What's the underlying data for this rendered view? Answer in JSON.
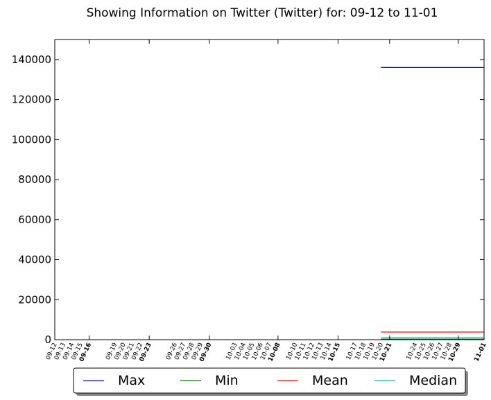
{
  "chart_data": {
    "type": "line",
    "title": "Showing Information on Twitter (Twitter) for: 09-12 to 11-01",
    "xlabel": "",
    "ylabel": "",
    "ylim": [
      0,
      150000
    ],
    "yticks": [
      0,
      20000,
      40000,
      60000,
      80000,
      100000,
      120000,
      140000
    ],
    "ytick_labels": [
      "0",
      "20000",
      "40000",
      "60000",
      "80000",
      "100000",
      "120000",
      "140000"
    ],
    "x_range": [
      "09-12",
      "11-01"
    ],
    "x_tick_labels": [
      {
        "label": "09-12",
        "major": false
      },
      {
        "label": "09-13",
        "major": false
      },
      {
        "label": "09-14",
        "major": false
      },
      {
        "label": "09-15",
        "major": false
      },
      {
        "label": "09-16",
        "major": true
      },
      {
        "label": "09-19",
        "major": false
      },
      {
        "label": "09-20",
        "major": false
      },
      {
        "label": "09-21",
        "major": false
      },
      {
        "label": "09-22",
        "major": false
      },
      {
        "label": "09-23",
        "major": true
      },
      {
        "label": "09-26",
        "major": false
      },
      {
        "label": "09-27",
        "major": false
      },
      {
        "label": "09-28",
        "major": false
      },
      {
        "label": "09-29",
        "major": false
      },
      {
        "label": "09-30",
        "major": true
      },
      {
        "label": "10-03",
        "major": false
      },
      {
        "label": "10-04",
        "major": false
      },
      {
        "label": "10-05",
        "major": false
      },
      {
        "label": "10-06",
        "major": false
      },
      {
        "label": "10-07",
        "major": false
      },
      {
        "label": "10-08",
        "major": true
      },
      {
        "label": "10-10",
        "major": false
      },
      {
        "label": "10-11",
        "major": false
      },
      {
        "label": "10-12",
        "major": false
      },
      {
        "label": "10-13",
        "major": false
      },
      {
        "label": "10-14",
        "major": false
      },
      {
        "label": "10-15",
        "major": true
      },
      {
        "label": "10-17",
        "major": false
      },
      {
        "label": "10-18",
        "major": false
      },
      {
        "label": "10-19",
        "major": false
      },
      {
        "label": "10-20",
        "major": false
      },
      {
        "label": "10-21",
        "major": true
      },
      {
        "label": "10-24",
        "major": false
      },
      {
        "label": "10-25",
        "major": false
      },
      {
        "label": "10-26",
        "major": false
      },
      {
        "label": "10-27",
        "major": false
      },
      {
        "label": "10-28",
        "major": false
      },
      {
        "label": "10-29",
        "major": true
      },
      {
        "label": "11-01",
        "major": true
      }
    ],
    "series": [
      {
        "name": "Max",
        "color": "#0000ff",
        "points": [
          {
            "x": "10-20",
            "y": 136000
          },
          {
            "x": "11-01",
            "y": 136000
          }
        ]
      },
      {
        "name": "Min",
        "color": "#008000",
        "points": [
          {
            "x": "10-20",
            "y": 300
          },
          {
            "x": "11-01",
            "y": 300
          }
        ]
      },
      {
        "name": "Mean",
        "color": "#ff0000",
        "points": [
          {
            "x": "10-20",
            "y": 3800
          },
          {
            "x": "11-01",
            "y": 3800
          }
        ]
      },
      {
        "name": "Median",
        "color": "#00bfbf",
        "points": [
          {
            "x": "10-20",
            "y": 1000
          },
          {
            "x": "11-01",
            "y": 1000
          }
        ]
      }
    ],
    "grid": false,
    "legend_position": "bottom-center"
  }
}
